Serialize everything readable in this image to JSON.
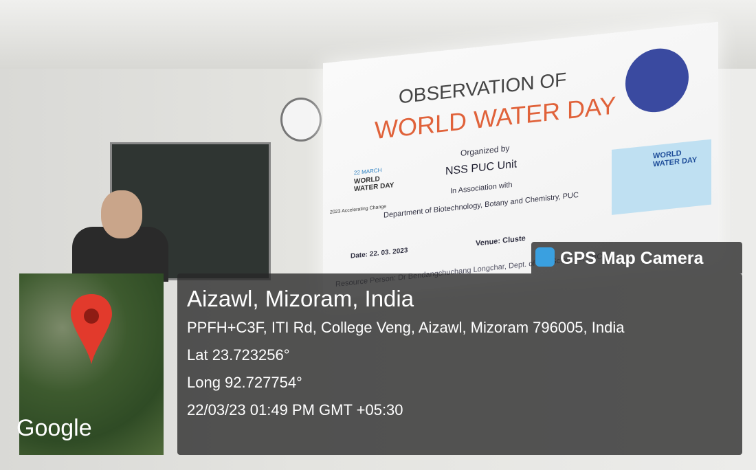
{
  "slide": {
    "title_line1": "OBSERVATION OF",
    "title_line2": "WORLD WATER DAY",
    "organized_by": "Organized by",
    "organizer": "NSS PUC Unit",
    "association_label": "In Association with",
    "association": "Department of Biotechnology, Botany and Chemistry, PUC",
    "date": "Date: 22. 03. 2023",
    "venue": "Venue: Cluste",
    "resource_person": "Resource Person: Dr Bendangchuchang Longchar, Dept. of Life Sciences, PUC",
    "badge": {
      "date": "22 MARCH",
      "title": "WORLD WATER DAY",
      "theme": "2023 Accelerating Change"
    },
    "poster_title": "WORLD WATER DAY"
  },
  "overlay": {
    "app": "GPS Map Camera",
    "place": "Aizawl, Mizoram, India",
    "address": "PPFH+C3F, ITI Rd, College Veng, Aizawl, Mizoram 796005, India",
    "lat": "Lat 23.723256°",
    "long": "Long 92.727754°",
    "timestamp": "22/03/23 01:49 PM GMT +05:30",
    "map_label": "Google"
  }
}
